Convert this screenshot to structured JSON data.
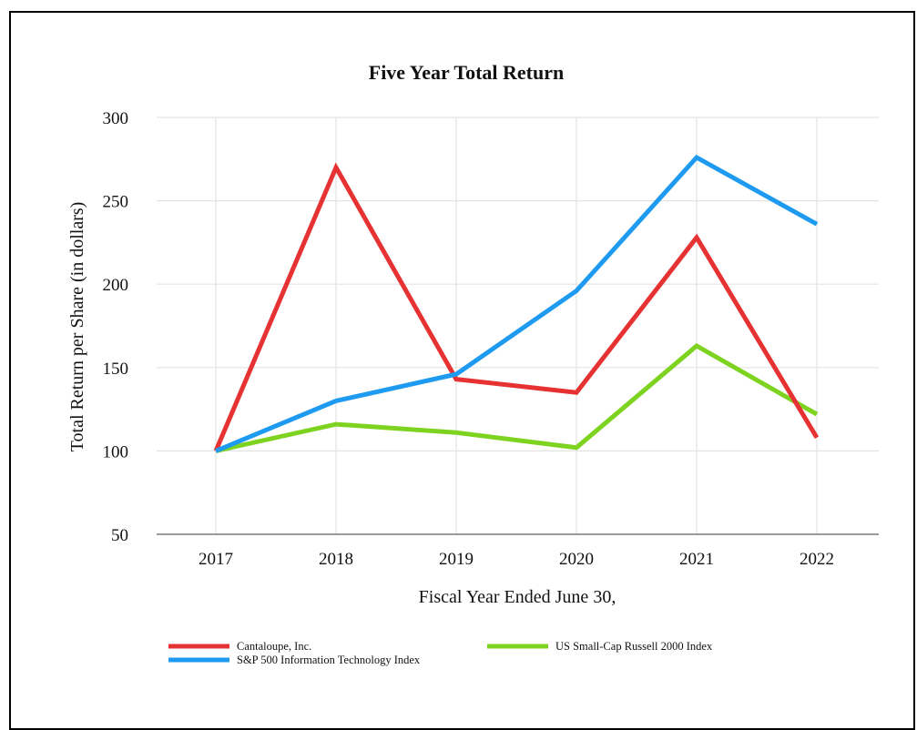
{
  "chart_data": {
    "type": "line",
    "title": "Five Year Total Return",
    "xlabel": "Fiscal Year Ended June 30,",
    "ylabel": "Total Return per Share (in dollars)",
    "categories": [
      "2017",
      "2018",
      "2019",
      "2020",
      "2021",
      "2022"
    ],
    "yticks": [
      50,
      100,
      150,
      200,
      250,
      300
    ],
    "ylim": [
      50,
      300
    ],
    "grid": true,
    "legend_position": "bottom",
    "series": [
      {
        "name": "Cantaloupe, Inc.",
        "color": "#e63232",
        "values": [
          100,
          270,
          143,
          135,
          228,
          108
        ]
      },
      {
        "name": "US Small-Cap Russell 2000 Index",
        "color": "#7ed321",
        "values": [
          100,
          116,
          111,
          102,
          163,
          122
        ]
      },
      {
        "name": "S&P 500 Information Technology Index",
        "color": "#1e9bf0",
        "values": [
          100,
          130,
          146,
          196,
          276,
          236
        ]
      }
    ]
  }
}
